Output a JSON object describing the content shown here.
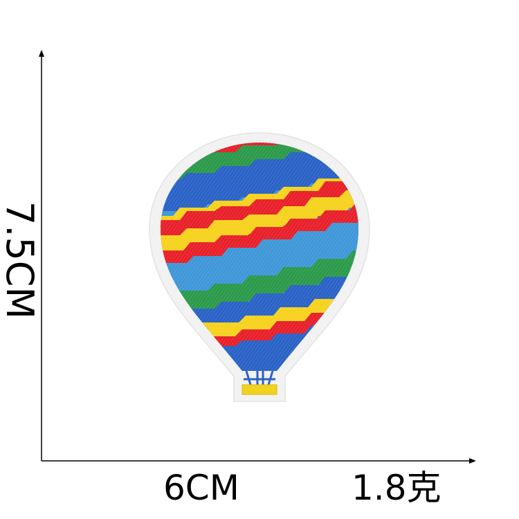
{
  "dimensions": {
    "height_label": "7.5CM",
    "width_label": "6CM",
    "weight_label": "1.8克"
  },
  "patch": {
    "subject": "hot-air-balloon-embroidered-patch",
    "border_color": "#f2f2f2",
    "stripe_colors": [
      "#e8202a",
      "#f6d21e",
      "#2a62c6",
      "#3f97d8",
      "#2b9a4a"
    ],
    "basket_color": "#f2d220",
    "rope_color": "#2a62c6"
  }
}
